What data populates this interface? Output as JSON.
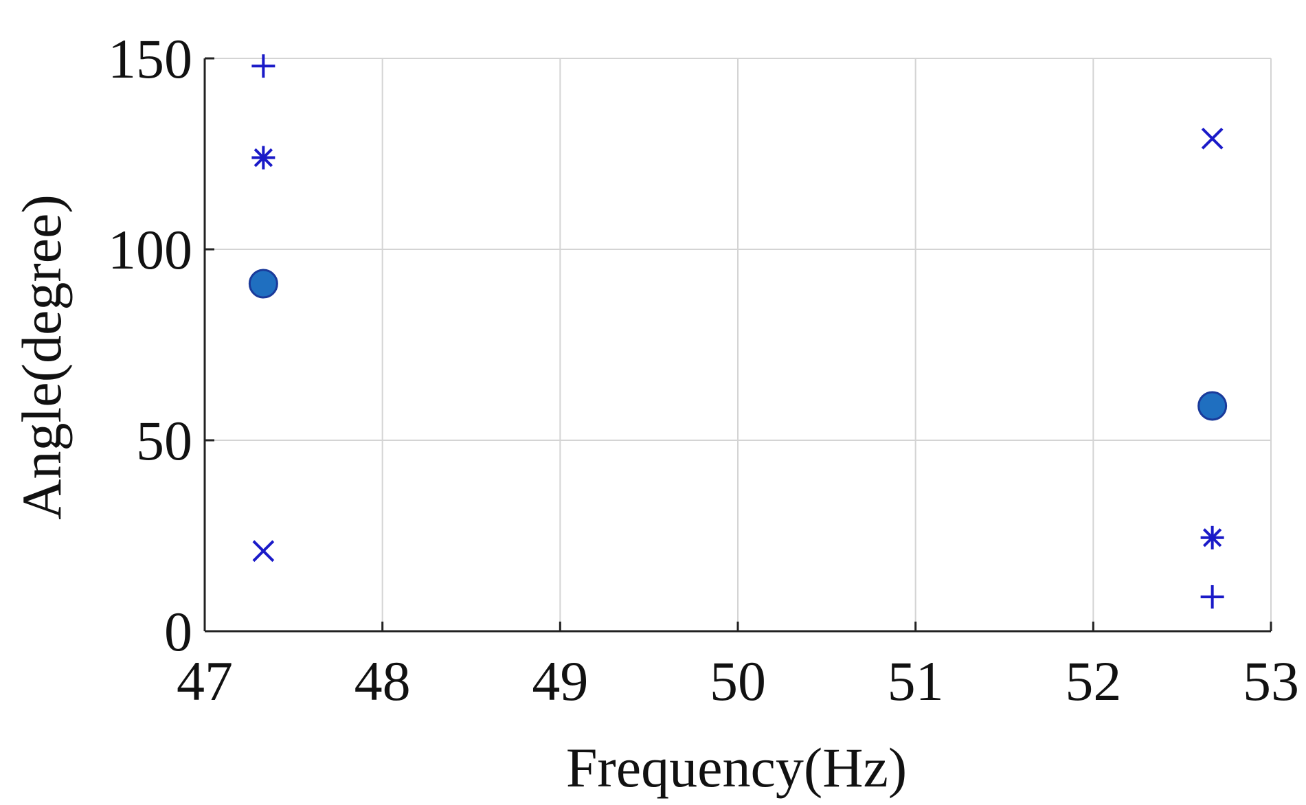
{
  "chart_data": {
    "type": "scatter",
    "title": "",
    "xlabel": "Frequency(Hz)",
    "ylabel": "Angle(degree)",
    "xlim": [
      47,
      53
    ],
    "ylim": [
      0,
      150
    ],
    "xticks": [
      "47",
      "48",
      "49",
      "50",
      "51",
      "52",
      "53"
    ],
    "yticks": [
      "0",
      "50",
      "100",
      "150"
    ],
    "grid": true,
    "colors": {
      "marker": "#1a1ac8",
      "circle_fill": "#1f6fc0",
      "circle_edge": "#1a3a9a"
    },
    "series": [
      {
        "marker": "plus",
        "points": [
          {
            "x": 47.33,
            "y": 148
          },
          {
            "x": 52.67,
            "y": 9
          }
        ]
      },
      {
        "marker": "asterisk",
        "points": [
          {
            "x": 47.33,
            "y": 124
          },
          {
            "x": 52.67,
            "y": 24.5
          }
        ]
      },
      {
        "marker": "circle",
        "points": [
          {
            "x": 47.33,
            "y": 91
          },
          {
            "x": 52.67,
            "y": 59
          }
        ]
      },
      {
        "marker": "x",
        "points": [
          {
            "x": 47.33,
            "y": 21
          },
          {
            "x": 52.67,
            "y": 129
          }
        ]
      }
    ]
  }
}
